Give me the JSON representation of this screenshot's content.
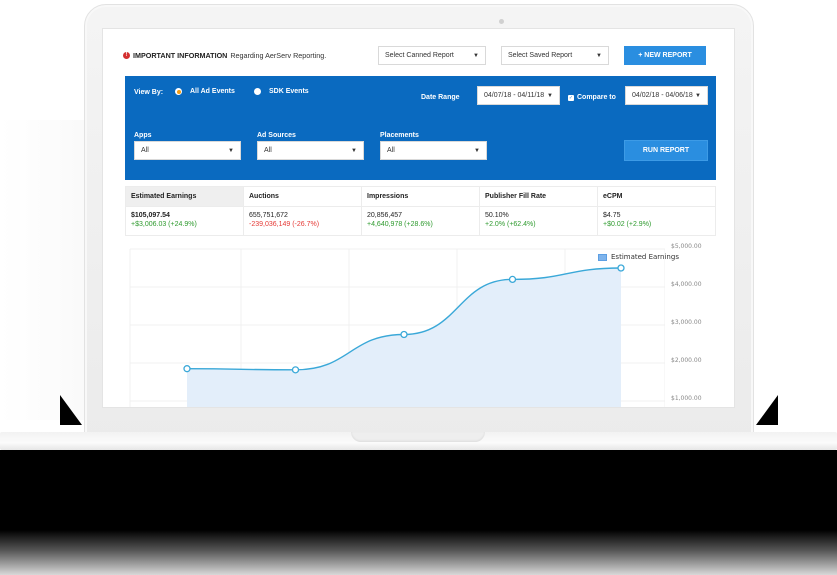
{
  "header": {
    "info_prefix": "IMPORTANT INFORMATION",
    "info_text": "Regarding AerServ Reporting.",
    "info_icon": "alert-circle-icon",
    "canned_report": {
      "value": "Select Canned Report"
    },
    "saved_report": {
      "value": "Select Saved Report"
    },
    "new_report_label": "+ NEW REPORT"
  },
  "filters": {
    "view_by_label": "View By:",
    "view_options": [
      {
        "label": "All Ad Events",
        "checked": true
      },
      {
        "label": "SDK Events",
        "checked": false
      }
    ],
    "date_range_label": "Date Range",
    "date_range_value": "04/07/18 - 04/11/18",
    "compare_to_label": "Compare to",
    "compare_to_checked": true,
    "compare_range_value": "04/02/18 - 04/06/18",
    "apps": {
      "label": "Apps",
      "value": "All"
    },
    "ad_sources": {
      "label": "Ad Sources",
      "value": "All"
    },
    "placements": {
      "label": "Placements",
      "value": "All"
    },
    "run_report_label": "RUN REPORT",
    "colors": {
      "panel": "#0a6ac0",
      "button": "#2a8ee0",
      "radio_checked": "#f39c12"
    }
  },
  "metrics": [
    {
      "title": "Estimated Earnings",
      "value": "$105,097.54",
      "delta": "+$3,006.03 (+24.9%)",
      "trend": "pos",
      "active": true
    },
    {
      "title": "Auctions",
      "value": "655,751,672",
      "delta": "-239,036,149 (-26.7%)",
      "trend": "neg",
      "active": false
    },
    {
      "title": "Impressions",
      "value": "20,856,457",
      "delta": "+4,640,978 (+28.6%)",
      "trend": "pos",
      "active": false
    },
    {
      "title": "Publisher Fill Rate",
      "value": "50.10%",
      "delta": "+2.0% (+62.4%)",
      "trend": "pos",
      "active": false
    },
    {
      "title": "eCPM",
      "value": "$4.75",
      "delta": "+$0.02 (+2.9%)",
      "trend": "pos",
      "active": false
    }
  ],
  "chart_data": {
    "type": "area",
    "title": "",
    "xlabel": "",
    "ylabel": "",
    "legend": {
      "entries": [
        "Estimated Earnings"
      ],
      "position": "top-right"
    },
    "x": [
      1,
      2,
      3,
      4,
      5
    ],
    "series": [
      {
        "name": "Estimated Earnings",
        "values": [
          1850,
          1820,
          2750,
          4200,
          4500
        ],
        "color": "#3aa8d8",
        "fill": "#e3eefa"
      }
    ],
    "y_tick_labels": [
      "$5,000.00",
      "$4,000.00",
      "$3,000.00",
      "$2,000.00",
      "$1,000.00"
    ],
    "ylim": [
      1000,
      5000
    ],
    "grid": true
  }
}
